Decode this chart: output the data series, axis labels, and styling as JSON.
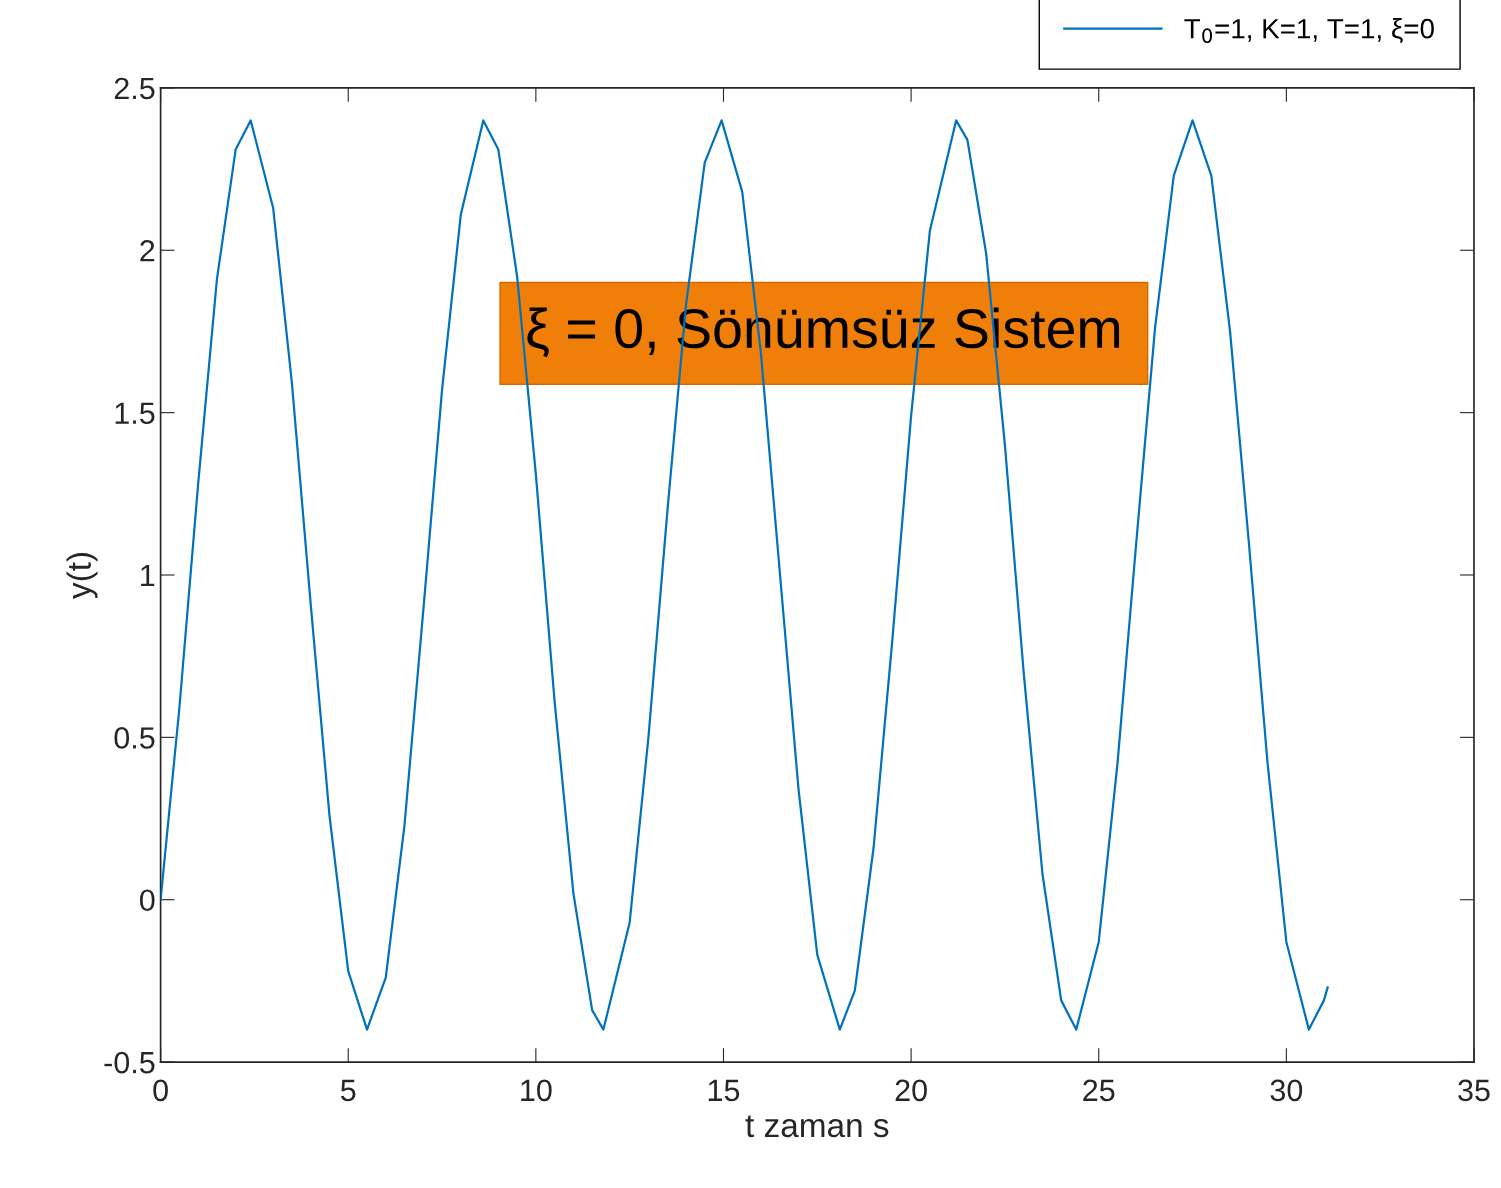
{
  "chart_data": {
    "type": "line",
    "xlabel": "t zaman s",
    "ylabel": "y(t)",
    "x": [
      0,
      0.5,
      1,
      1.5,
      2,
      2.4,
      3,
      3.5,
      4,
      4.5,
      5,
      5.5,
      6,
      6.5,
      7,
      7.5,
      8,
      8.6,
      9,
      9.5,
      10,
      10.5,
      11,
      11.5,
      11.8,
      12.5,
      13,
      13.5,
      14,
      14.5,
      14.95,
      15.5,
      16,
      16.5,
      17,
      17.5,
      18.1,
      18.5,
      19,
      19.5,
      20,
      20.5,
      21.2,
      21.5,
      22,
      22.5,
      23,
      23.5,
      24,
      24.4,
      25,
      25.5,
      26,
      26.5,
      27,
      27.5,
      28,
      28.5,
      29,
      29.5,
      30,
      30.6,
      31,
      31.1
    ],
    "series": [
      {
        "name": "T$_{0}$=1, K=1, T=1, ξ=0",
        "color": "#0072bd",
        "values": [
          0,
          0.59,
          1.28,
          1.91,
          2.31,
          2.4,
          2.13,
          1.59,
          0.91,
          0.26,
          -0.22,
          -0.4,
          -0.24,
          0.23,
          0.89,
          1.57,
          2.11,
          2.4,
          2.31,
          1.92,
          1.31,
          0.61,
          0.02,
          -0.34,
          -0.4,
          -0.07,
          0.5,
          1.19,
          1.83,
          2.27,
          2.4,
          2.18,
          1.68,
          1.01,
          0.34,
          -0.17,
          -0.4,
          -0.28,
          0.16,
          0.8,
          1.49,
          2.06,
          2.4,
          2.34,
          1.99,
          1.4,
          0.7,
          0.08,
          -0.31,
          -0.4,
          -0.13,
          0.42,
          1.1,
          1.76,
          2.23,
          2.4,
          2.23,
          1.75,
          1.1,
          0.42,
          -0.13,
          -0.4,
          -0.31,
          -0.27
        ]
      }
    ],
    "xlim": [
      0,
      35
    ],
    "xticks": [
      0,
      5,
      10,
      15,
      20,
      25,
      30,
      35
    ],
    "ylim": [
      -0.5,
      2.5
    ],
    "yticks": [
      -0.5,
      0,
      0.5,
      1,
      1.5,
      2,
      2.5
    ],
    "grid": false,
    "legend": "top right",
    "marker": "none",
    "line_style": "solid",
    "annotations": [
      "ξ = 0, Sönümsüz Sistem"
    ]
  }
}
